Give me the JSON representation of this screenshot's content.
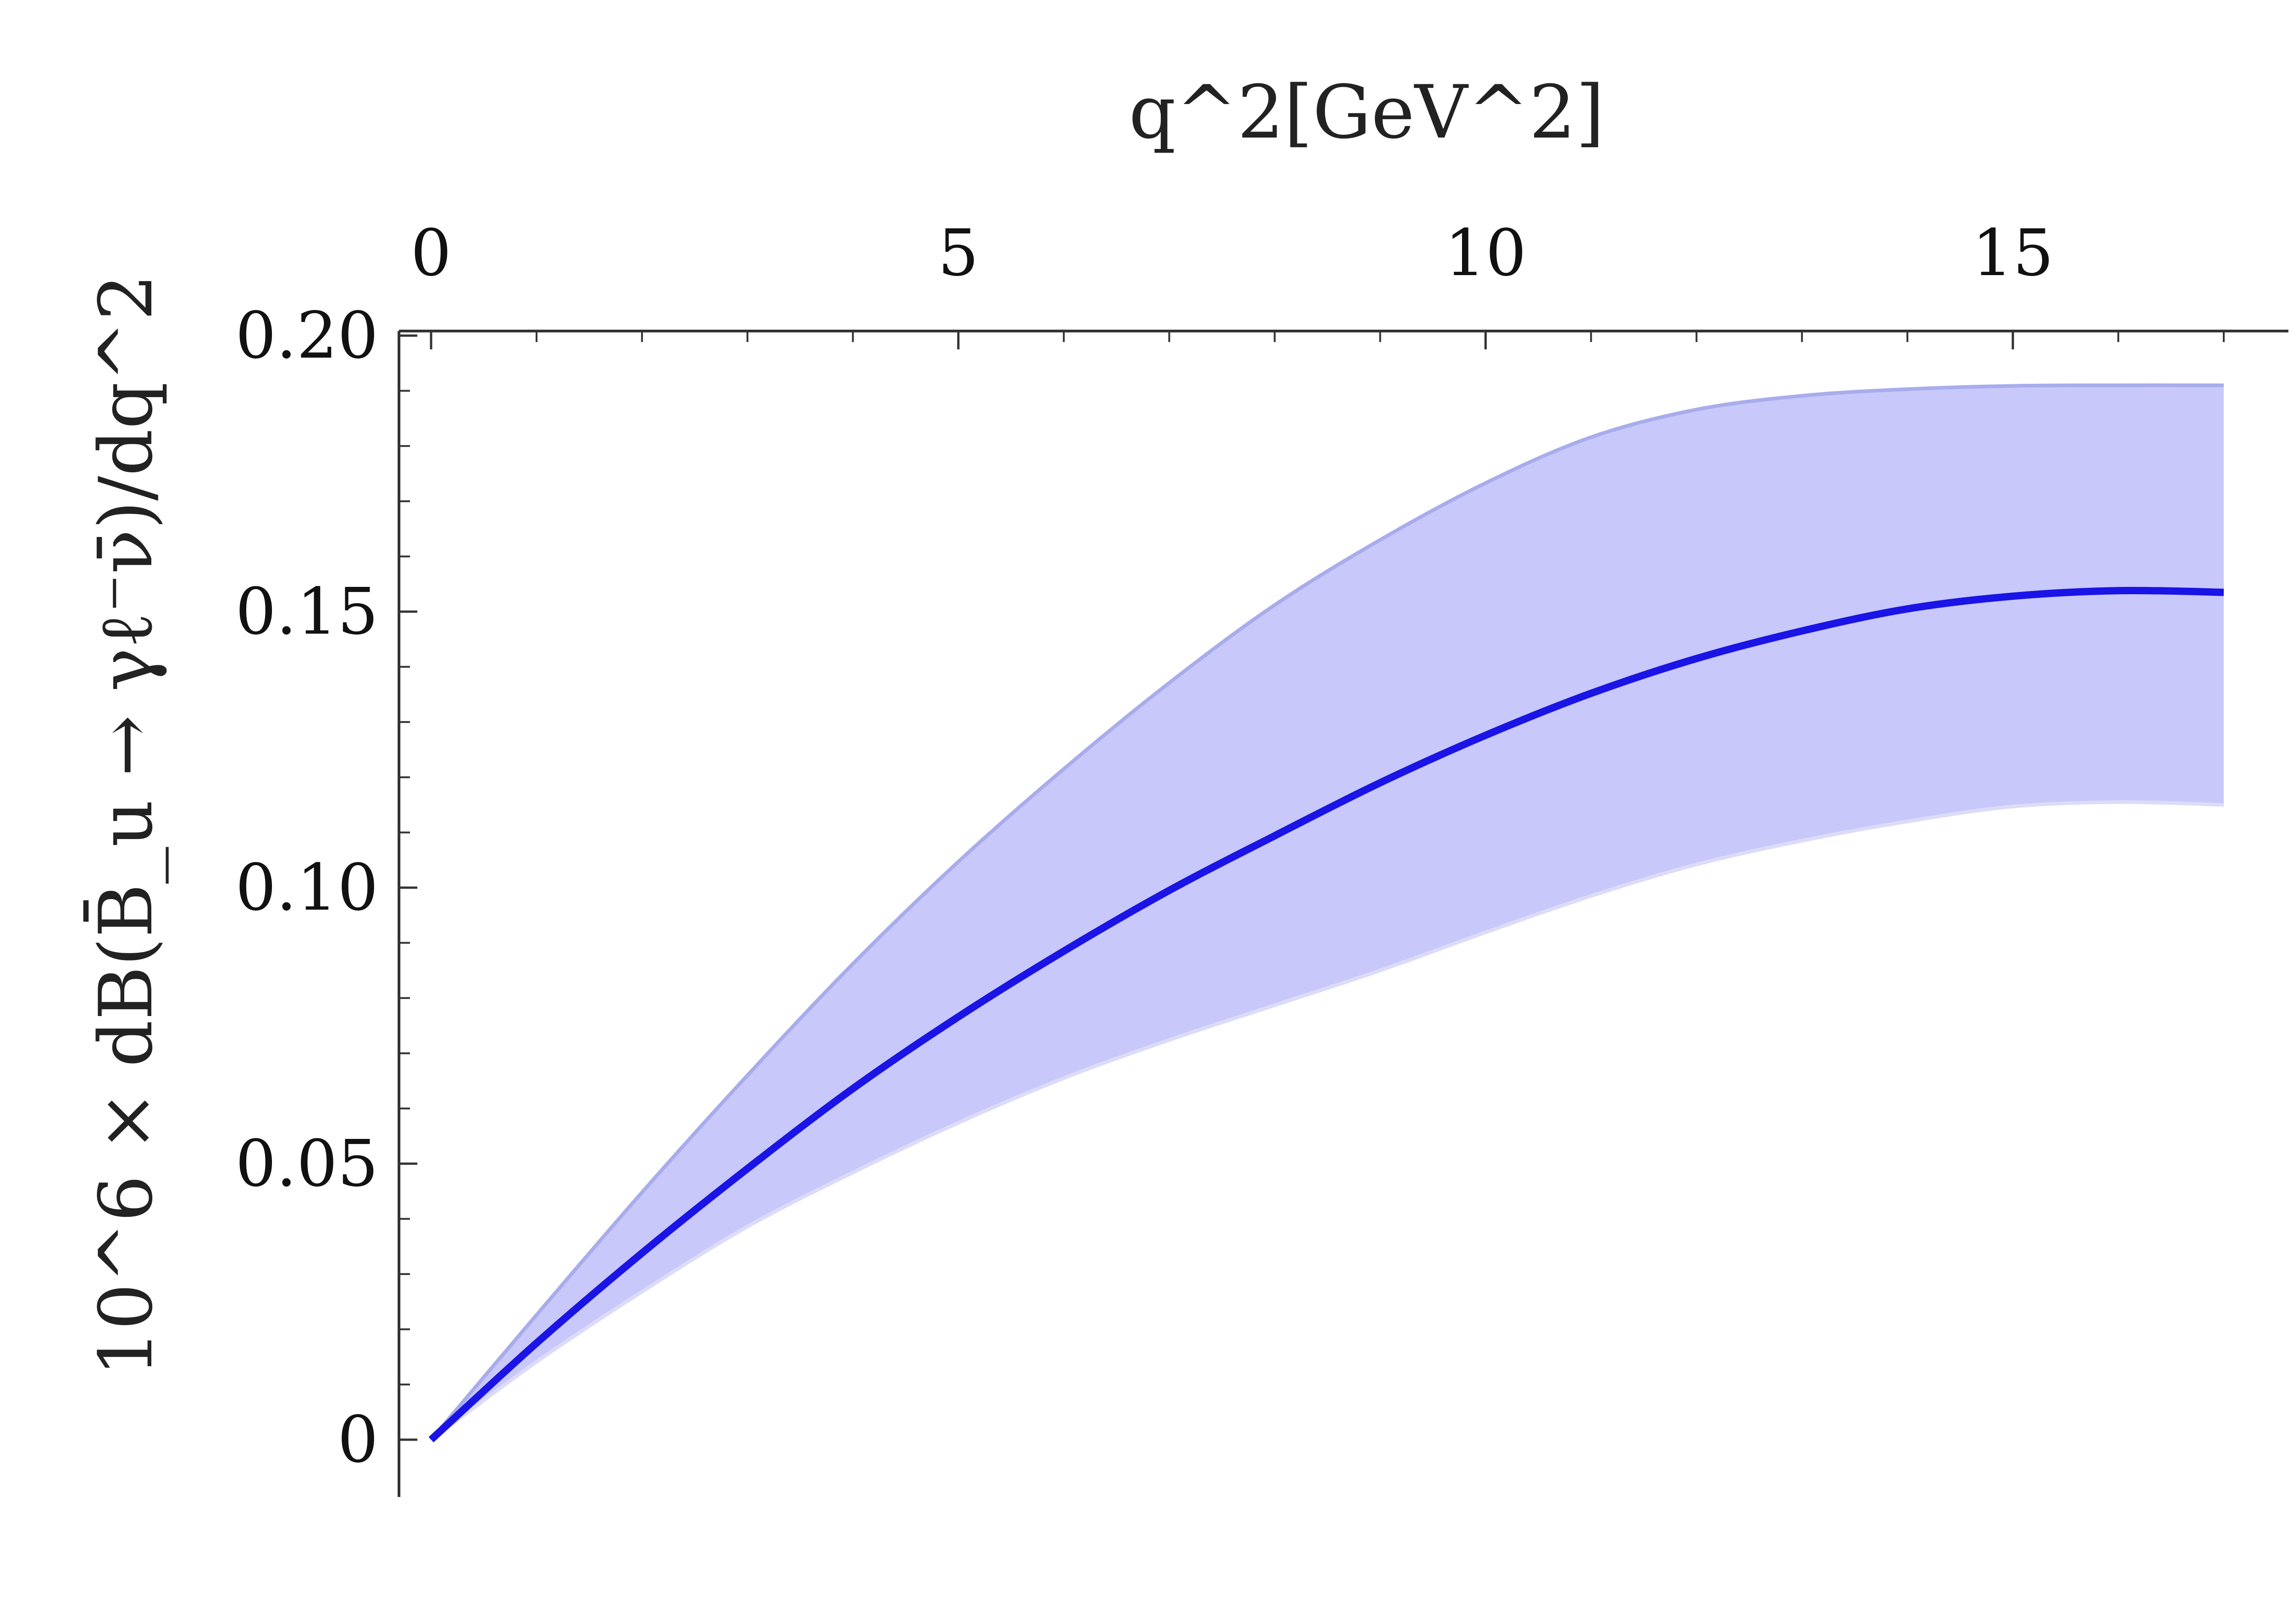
{
  "chart_data": {
    "type": "line",
    "title": "",
    "xlabel": "q^2[GeV^2]",
    "ylabel": "10^6 × dB(B̄_u → γℓ⁻ν̄)/dq^2",
    "xlim": [
      0,
      17.2
    ],
    "ylim": [
      -0.01,
      0.2
    ],
    "x_axis_position": "top",
    "grid": false,
    "legend": "none",
    "x_ticks": [
      "0",
      "5",
      "10",
      "15"
    ],
    "y_ticks": [
      "0",
      "0.05",
      "0.10",
      "0.15",
      "0.20"
    ],
    "x": [
      0,
      1,
      2,
      3,
      4,
      5,
      6,
      7,
      8,
      9,
      10,
      11,
      12,
      13,
      14,
      15,
      16,
      17
    ],
    "series": [
      {
        "values": [
          0.0,
          0.0175,
          0.0338,
          0.0491,
          0.0636,
          0.0766,
          0.0885,
          0.0995,
          0.1094,
          0.119,
          0.1276,
          0.1352,
          0.1415,
          0.1465,
          0.1505,
          0.1528,
          0.1538,
          0.1535
        ],
        "band_upper": [
          0.0,
          0.0226,
          0.0448,
          0.066,
          0.0862,
          0.1047,
          0.1215,
          0.1371,
          0.1512,
          0.163,
          0.1733,
          0.1816,
          0.1866,
          0.1891,
          0.1903,
          0.1909,
          0.191,
          0.191
        ],
        "band_lower": [
          0.0,
          0.0141,
          0.0268,
          0.0386,
          0.0484,
          0.0574,
          0.0655,
          0.0724,
          0.0787,
          0.085,
          0.0919,
          0.0985,
          0.1042,
          0.1085,
          0.112,
          0.1147,
          0.1155,
          0.115
        ]
      }
    ],
    "colors": {
      "line": "#1a14e6",
      "band": "#c8c8fa",
      "band_edge": "#a9acec",
      "axis": "#333333"
    }
  }
}
